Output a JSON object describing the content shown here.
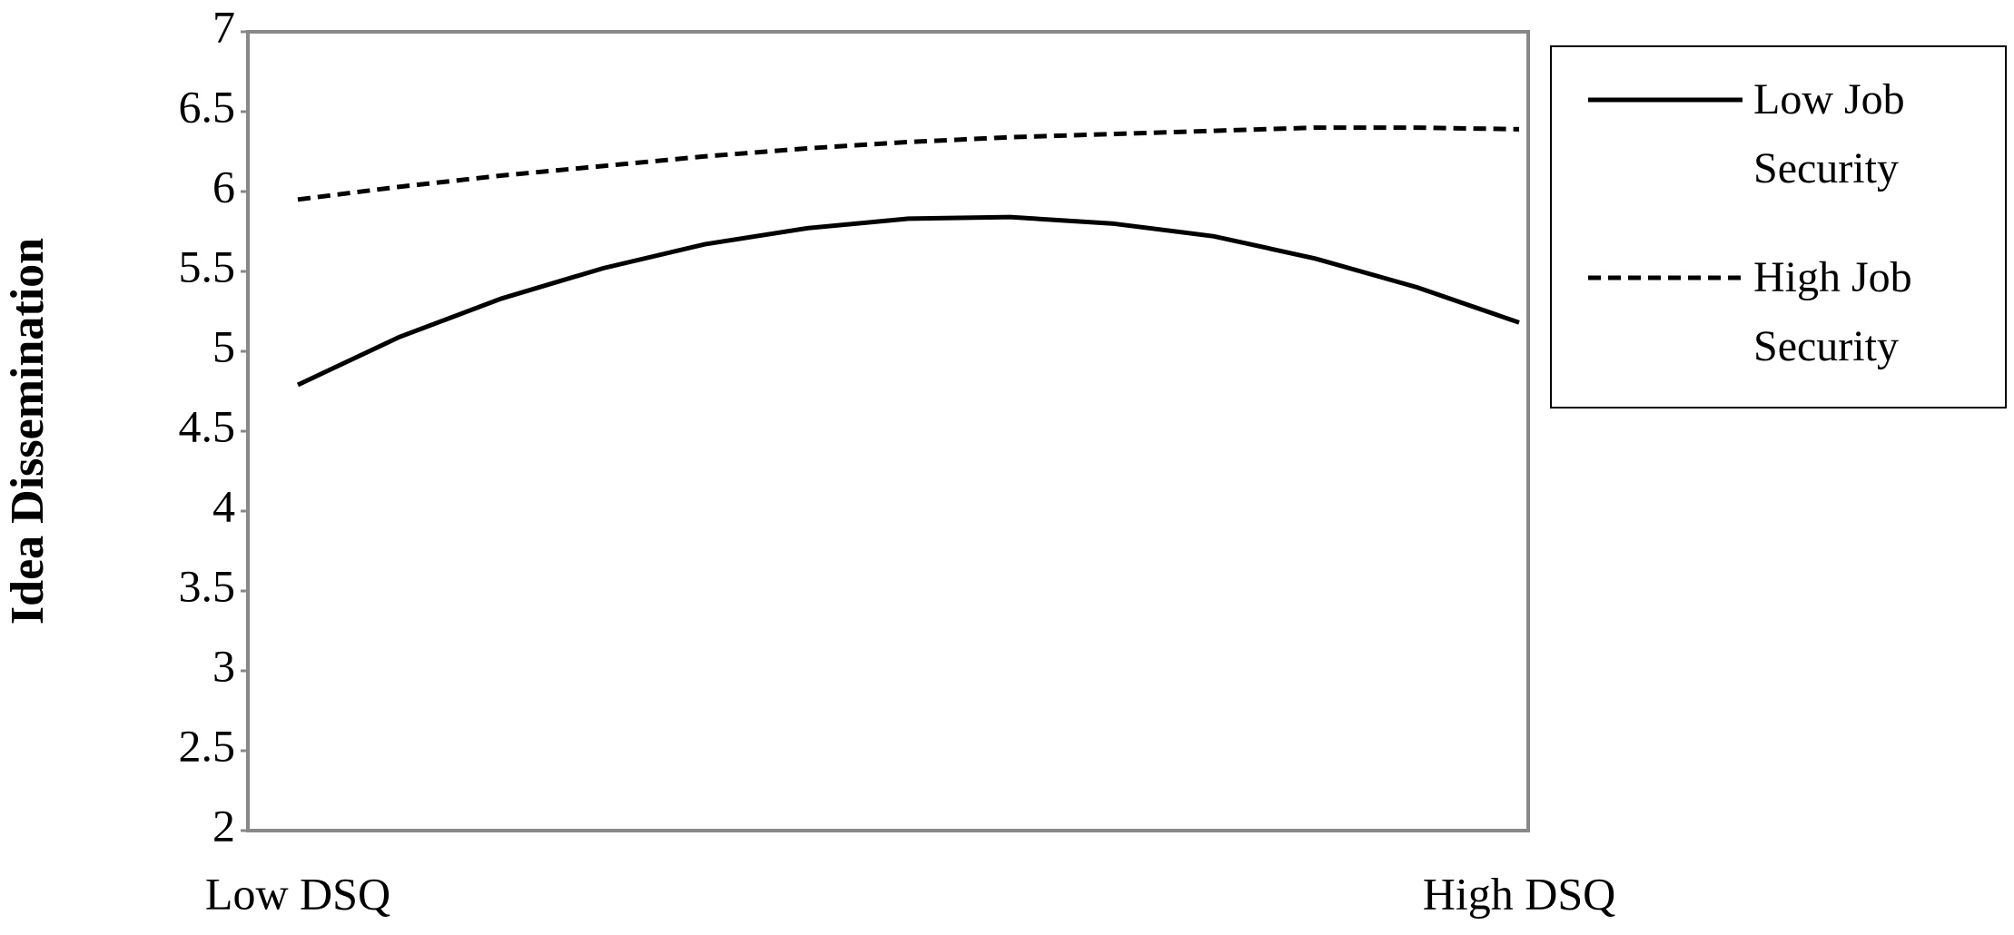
{
  "chart_data": {
    "type": "line",
    "y_label": "Idea Dissemination",
    "categories": [
      "Low DSQ",
      null,
      null,
      null,
      null,
      null,
      null,
      null,
      null,
      null,
      null,
      null,
      "High DSQ"
    ],
    "series": [
      {
        "name": "Low Job Security",
        "color": "#000000",
        "line_style": "solid",
        "values": [
          4.79,
          5.09,
          5.33,
          5.52,
          5.67,
          5.77,
          5.83,
          5.84,
          5.8,
          5.72,
          5.58,
          5.4,
          5.18
        ]
      },
      {
        "name": "High Job Security",
        "color": "#000000",
        "line_style": "dashed",
        "values": [
          5.95,
          6.03,
          6.1,
          6.16,
          6.22,
          6.27,
          6.31,
          6.34,
          6.36,
          6.38,
          6.4,
          6.4,
          6.39
        ]
      }
    ],
    "ylim": [
      2,
      7
    ],
    "yticks": [
      2,
      2.5,
      3,
      3.5,
      4,
      4.5,
      5,
      5.5,
      6,
      6.5,
      7
    ],
    "grid": false
  }
}
